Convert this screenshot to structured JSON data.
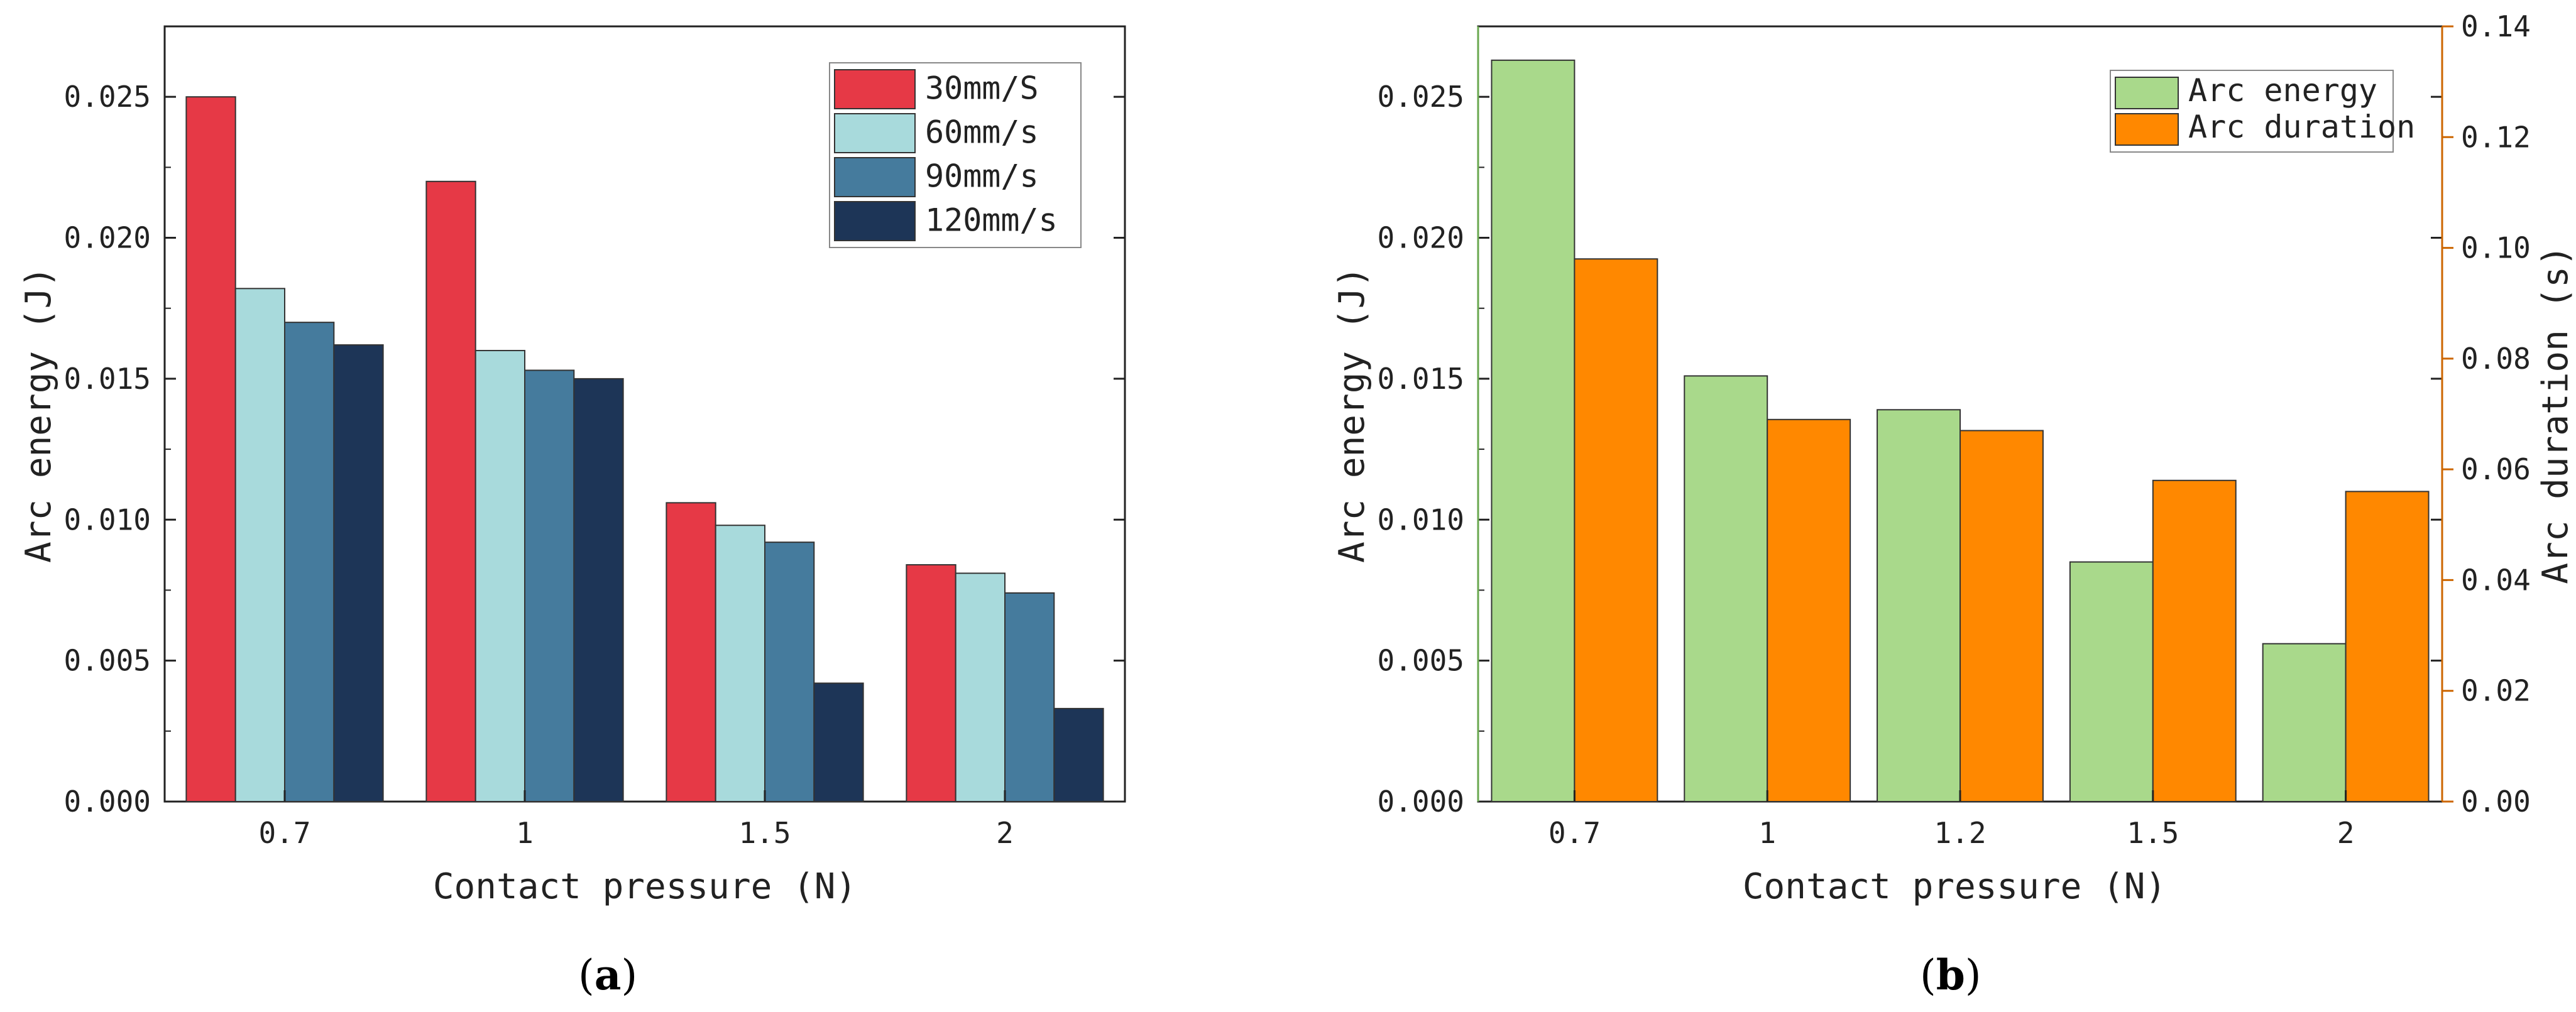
{
  "chart_data": [
    {
      "type": "bar",
      "caption_letter": "a",
      "categories": [
        "0.7",
        "1",
        "1.5",
        "2"
      ],
      "xlabel": "Contact pressure (N)",
      "ylabel": "Arc energy (J)",
      "ylim": [
        0,
        0.0275
      ],
      "yticks": [
        "0.000",
        "0.005",
        "0.010",
        "0.015",
        "0.020",
        "0.025"
      ],
      "yticks_values": [
        0,
        0.005,
        0.01,
        0.015,
        0.02,
        0.025
      ],
      "legend_position": "top-right",
      "series": [
        {
          "name": "30mm/S",
          "color": "#e63946",
          "values": [
            0.025,
            0.022,
            0.0106,
            0.0084
          ]
        },
        {
          "name": "60mm/s",
          "color": "#a8dadc",
          "values": [
            0.0182,
            0.016,
            0.0098,
            0.0081
          ]
        },
        {
          "name": "90mm/s",
          "color": "#457b9d",
          "values": [
            0.017,
            0.0153,
            0.0092,
            0.0074
          ]
        },
        {
          "name": "120mm/s",
          "color": "#1d3557",
          "values": [
            0.0162,
            0.015,
            0.0042,
            0.0033
          ]
        }
      ]
    },
    {
      "type": "bar",
      "caption_letter": "b",
      "categories": [
        "0.7",
        "1",
        "1.2",
        "1.5",
        "2"
      ],
      "xlabel": "Contact pressure (N)",
      "ylabel": "Arc energy (J)",
      "ylabel_right": "Arc duration (s)",
      "ylim": [
        0,
        0.0275
      ],
      "ylim_right": [
        0,
        0.14
      ],
      "yticks": [
        "0.000",
        "0.005",
        "0.010",
        "0.015",
        "0.020",
        "0.025"
      ],
      "yticks_values": [
        0,
        0.005,
        0.01,
        0.015,
        0.02,
        0.025
      ],
      "yticks_right": [
        "0.00",
        "0.02",
        "0.04",
        "0.06",
        "0.08",
        "0.10",
        "0.12",
        "0.14"
      ],
      "yticks_right_values": [
        0,
        0.02,
        0.04,
        0.06,
        0.08,
        0.1,
        0.12,
        0.14
      ],
      "left_axis_color": "#6aa84f",
      "right_axis_color": "#cc6600",
      "legend_position": "top-right",
      "series": [
        {
          "name": "Arc energy",
          "axis": "left",
          "color": "#a9d98b",
          "values": [
            0.0263,
            0.0151,
            0.0139,
            0.0085,
            0.0056
          ]
        },
        {
          "name": "Arc duration",
          "axis": "right",
          "color": "#ff8800",
          "values": [
            0.098,
            0.069,
            0.067,
            0.058,
            0.056
          ]
        }
      ]
    }
  ]
}
